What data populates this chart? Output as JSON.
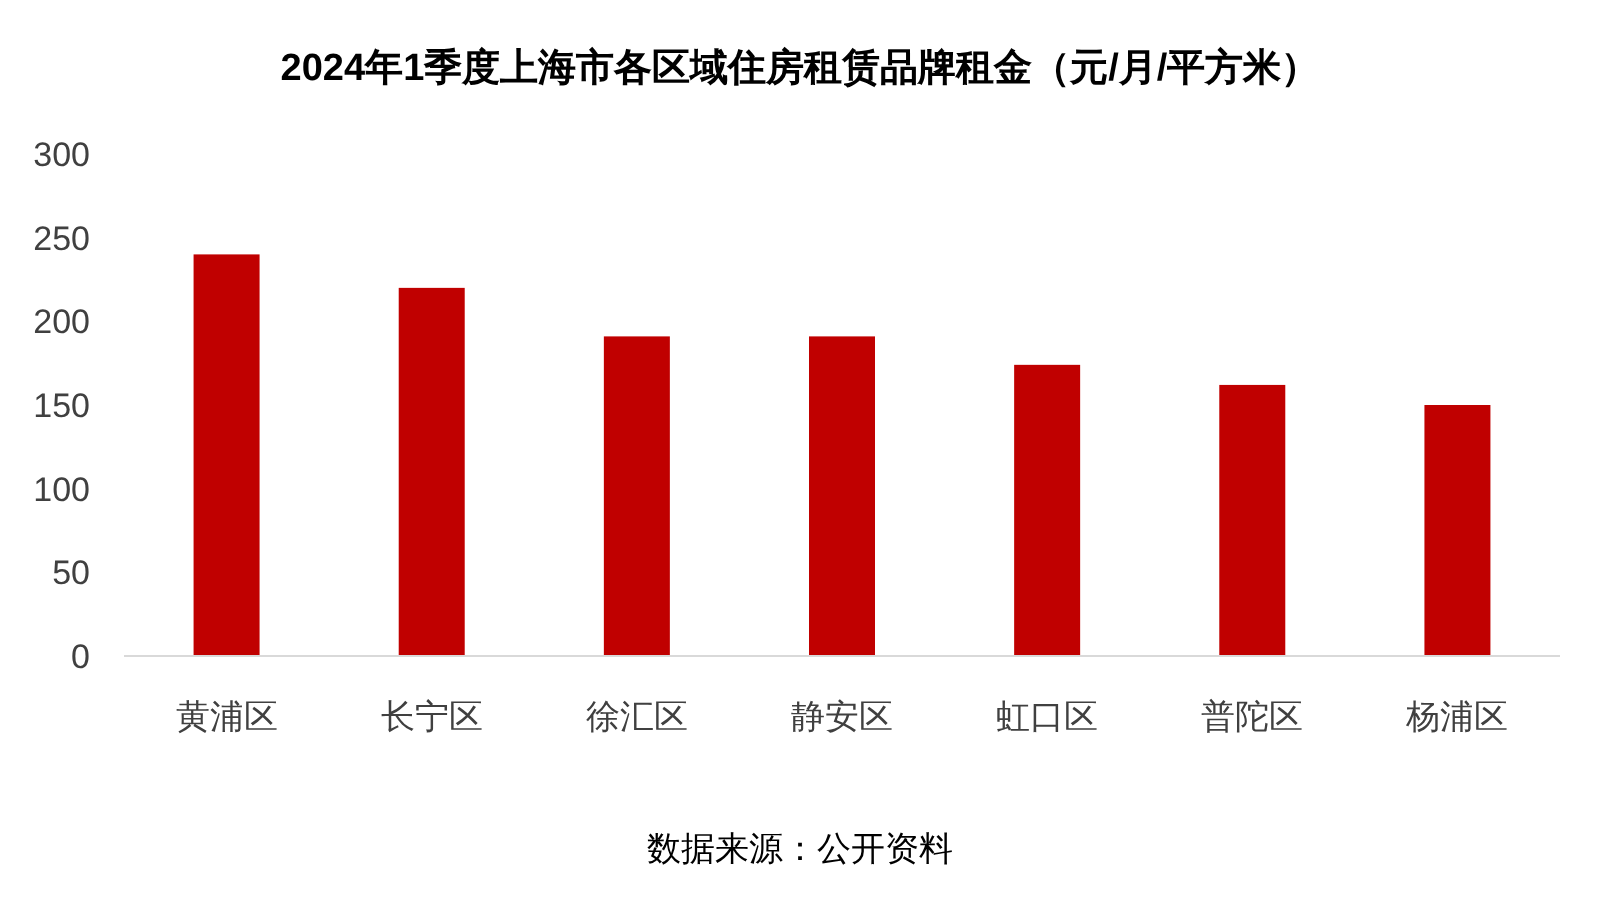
{
  "chart_data": {
    "type": "bar",
    "title": "2024年1季度上海市各区域住房租赁品牌租金（元/月/平方米）",
    "categories": [
      "黄浦区",
      "长宁区",
      "徐汇区",
      "静安区",
      "虹口区",
      "普陀区",
      "杨浦区"
    ],
    "values": [
      240,
      220,
      191,
      191,
      174,
      162,
      150
    ],
    "color": "#c00000",
    "ylim": [
      0,
      300
    ],
    "yticks": [
      0,
      50,
      100,
      150,
      200,
      250,
      300
    ],
    "grid": false,
    "annotations": [
      "数据来源：公开资料"
    ]
  }
}
